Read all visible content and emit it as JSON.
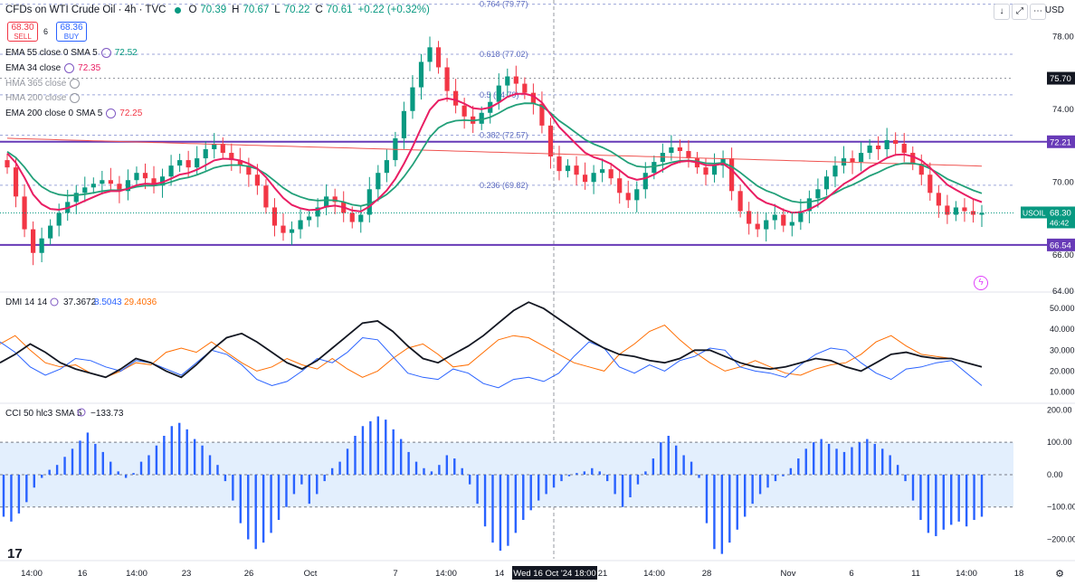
{
  "header": {
    "title": "CFDs on WTI Crude Oil · 4h · TVC",
    "o_label": "O",
    "o": "70.39",
    "h_label": "H",
    "h": "70.67",
    "l_label": "L",
    "l": "70.22",
    "c_label": "C",
    "c": "70.61",
    "change": "+0.22 (+0.32%)",
    "sell_price": "68.30",
    "sell_label": "SELL",
    "buy_price": "68.36",
    "buy_label": "BUY",
    "spread": "6",
    "currency": "USD"
  },
  "indicators": [
    {
      "name": "EMA 55 close 0 SMA 5",
      "value": "72.52",
      "color": "#089981",
      "muted": false
    },
    {
      "name": "EMA 34 close",
      "value": "72.35",
      "color": "#e91e63",
      "muted": false
    },
    {
      "name": "HMA 365 close",
      "value": "",
      "color": "#9598a1",
      "muted": true
    },
    {
      "name": "HMA 200 close",
      "value": "",
      "color": "#9598a1",
      "muted": true
    },
    {
      "name": "EMA 200 close 0 SMA 5",
      "value": "72.25",
      "color": "#f23645",
      "muted": false
    }
  ],
  "colors": {
    "up": "#089981",
    "down": "#f23645",
    "ema55": "#22a079",
    "ema34": "#e91e63",
    "ema200": "#ef5350",
    "hline": "#673ab7",
    "fib": "#5c6bc0",
    "dmi_adx": "#131722",
    "dmi_plus": "#2962ff",
    "dmi_minus": "#ff6d00",
    "cci": "#2962ff",
    "cci_band": "#e3effd"
  },
  "chart_data": [
    {
      "type": "candlestick",
      "title": "CFDs on WTI Crude Oil · 4h · TVC",
      "ylim": [
        64,
        80
      ],
      "y_ticks": [
        64,
        66,
        70,
        74,
        78
      ],
      "y_tick_labels": [
        "64.00",
        "66.00",
        "70.00",
        "74.00",
        "78.00"
      ],
      "x_tick_labels": [
        "14:00",
        "16",
        "14:00",
        "23",
        "26",
        "Oct",
        "7",
        "14:00",
        "14",
        "21",
        "14:00",
        "28",
        "Nov",
        "6",
        "11",
        "14:00",
        "18"
      ],
      "crosshair_label": "Wed 16 Oct '24   18:00",
      "series": [
        {
          "name": "WTI close (approx.)",
          "values": [
            70.8,
            69.2,
            67.4,
            66.1,
            66.9,
            67.6,
            68.3,
            68.9,
            69.4,
            69.7,
            69.9,
            70.1,
            69.9,
            69.5,
            70.1,
            70.5,
            70.2,
            69.8,
            70.3,
            70.9,
            71.2,
            70.8,
            71.3,
            71.8,
            72.1,
            71.6,
            71.2,
            70.9,
            70.4,
            69.8,
            68.6,
            67.6,
            67.2,
            67.4,
            67.9,
            68.1,
            68.6,
            69.2,
            68.9,
            68.3,
            67.8,
            68.2,
            69.6,
            70.5,
            71.2,
            72.4,
            73.9,
            75.2,
            76.6,
            77.4,
            76.3,
            75.0,
            74.2,
            73.6,
            73.2,
            73.8,
            74.4,
            75.3,
            75.8,
            75.4,
            74.9,
            74.3,
            73.1,
            71.4,
            70.6,
            70.9,
            70.4,
            70.0,
            70.5,
            70.7,
            70.2,
            69.4,
            69.0,
            69.6,
            70.5,
            71.1,
            71.6,
            71.9,
            71.7,
            71.3,
            70.8,
            70.4,
            70.9,
            71.3,
            69.5,
            68.4,
            67.7,
            67.4,
            67.9,
            68.2,
            67.6,
            67.8,
            68.4,
            69.1,
            69.6,
            70.3,
            70.9,
            71.3,
            71.1,
            71.6,
            72.0,
            71.8,
            72.3,
            72.1,
            71.6,
            71.0,
            70.4,
            69.4,
            68.7,
            68.2,
            68.6,
            68.4,
            68.2,
            68.3
          ]
        },
        {
          "name": "EMA 55 close 0 SMA 5",
          "color": "#22a079"
        },
        {
          "name": "EMA 34 close",
          "color": "#e91e63"
        },
        {
          "name": "EMA 200 close 0 SMA 5",
          "color": "#ef5350"
        }
      ],
      "horizontal_lines": [
        {
          "value": 72.21,
          "label": "72.21"
        },
        {
          "value": 66.54,
          "label": "66.54"
        }
      ],
      "fib_levels": [
        {
          "value": 79.77,
          "label": "0.764 (79.77)"
        },
        {
          "value": 77.02,
          "label": "0.618 (77.02)"
        },
        {
          "value": 74.79,
          "label": "0.5 (74.79)"
        },
        {
          "value": 72.57,
          "label": "0.382 (72.57)"
        },
        {
          "value": 69.82,
          "label": "0.236 (69.82)"
        }
      ],
      "price_labels": [
        {
          "value": 75.7,
          "label": "75.70"
        },
        {
          "value": 68.3,
          "symbol": "USOIL",
          "label": "68.30",
          "countdown": "46:42"
        }
      ]
    },
    {
      "type": "line",
      "title": "DMI 14 14",
      "values_shown": [
        "37.3672",
        "8.5043",
        "29.4036"
      ],
      "ylim": [
        5,
        57
      ],
      "y_tick_labels": [
        "10.000",
        "20.000",
        "30.000",
        "40.000",
        "50.000"
      ],
      "y_ticks": [
        10,
        20,
        30,
        40,
        50
      ],
      "series": [
        {
          "name": "ADX",
          "values": [
            24,
            28,
            33,
            29,
            24,
            21,
            19,
            17,
            21,
            26,
            24,
            20,
            17,
            23,
            30,
            36,
            38,
            34,
            29,
            24,
            21,
            25,
            31,
            37,
            43,
            44,
            39,
            32,
            26,
            24,
            28,
            32,
            37,
            43,
            49,
            53,
            50,
            45,
            40,
            35,
            31,
            28,
            27,
            25,
            24,
            26,
            30,
            30,
            27,
            24,
            22,
            21,
            22,
            24,
            26,
            25,
            22,
            20,
            24,
            28,
            29,
            27,
            26,
            26,
            24,
            22
          ]
        },
        {
          "name": "+DI",
          "values": [
            34,
            29,
            22,
            18,
            21,
            26,
            25,
            22,
            20,
            25,
            24,
            21,
            18,
            24,
            30,
            28,
            23,
            16,
            13,
            15,
            20,
            26,
            24,
            29,
            36,
            35,
            27,
            19,
            17,
            16,
            21,
            19,
            14,
            12,
            16,
            17,
            15,
            19,
            27,
            34,
            31,
            22,
            19,
            23,
            20,
            25,
            27,
            31,
            30,
            22,
            20,
            19,
            17,
            23,
            28,
            31,
            30,
            24,
            19,
            16,
            21,
            22,
            24,
            25,
            19,
            13
          ]
        },
        {
          "name": "-DI",
          "values": [
            33,
            37,
            30,
            24,
            22,
            23,
            19,
            17,
            20,
            24,
            23,
            29,
            31,
            29,
            34,
            29,
            24,
            20,
            22,
            26,
            23,
            21,
            26,
            21,
            17,
            20,
            26,
            31,
            33,
            28,
            22,
            23,
            29,
            35,
            37,
            36,
            32,
            28,
            24,
            22,
            20,
            28,
            33,
            39,
            42,
            35,
            29,
            24,
            20,
            22,
            25,
            22,
            19,
            18,
            21,
            23,
            24,
            28,
            34,
            37,
            32,
            28,
            27,
            26,
            24,
            22
          ]
        }
      ]
    },
    {
      "type": "bar",
      "title": "CCI 50 hlc3 SMA 5",
      "value_shown": "−133.73",
      "ylim": [
        -260,
        215
      ],
      "y_ticks": [
        -200,
        -100,
        0,
        100,
        200
      ],
      "y_tick_labels": [
        "−200.00",
        "−100.00",
        "0.00",
        "100.00",
        "200.00"
      ],
      "band": [
        -100,
        100
      ],
      "values": [
        -130,
        -145,
        -120,
        -85,
        -40,
        -10,
        15,
        30,
        55,
        80,
        105,
        130,
        95,
        70,
        40,
        10,
        -10,
        5,
        40,
        60,
        90,
        120,
        150,
        160,
        140,
        110,
        90,
        60,
        30,
        -20,
        -80,
        -150,
        -200,
        -230,
        -210,
        -180,
        -140,
        -100,
        -60,
        -30,
        -90,
        -60,
        -20,
        20,
        40,
        80,
        120,
        150,
        165,
        180,
        170,
        140,
        110,
        70,
        40,
        20,
        10,
        30,
        60,
        50,
        20,
        -30,
        -90,
        -160,
        -210,
        -235,
        -220,
        -180,
        -140,
        -110,
        -80,
        -60,
        -40,
        -20,
        -5,
        5,
        10,
        20,
        10,
        -20,
        -60,
        -100,
        -70,
        -30,
        10,
        50,
        100,
        120,
        90,
        60,
        40,
        -10,
        -150,
        -230,
        -245,
        -210,
        -170,
        -130,
        -90,
        -60,
        -40,
        -20,
        -5,
        20,
        50,
        80,
        100,
        110,
        95,
        80,
        70,
        85,
        100,
        110,
        95,
        80,
        60,
        30,
        -20,
        -80,
        -140,
        -180,
        -190,
        -170,
        -155,
        -145,
        -160,
        -140,
        -130
      ]
    }
  ]
}
